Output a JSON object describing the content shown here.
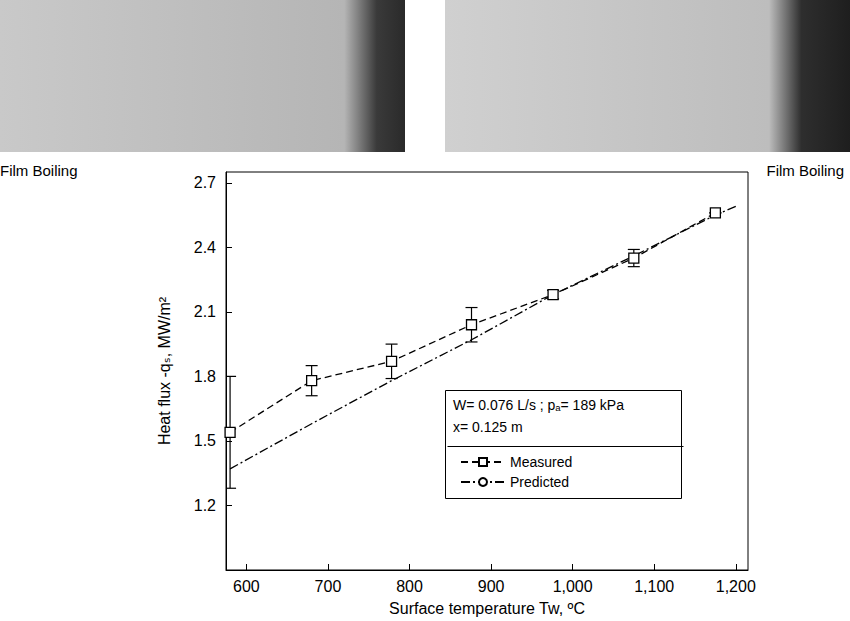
{
  "panels": [
    {
      "caption": "Film Boiling"
    },
    {
      "caption": "Film Boiling"
    }
  ],
  "chart_data": {
    "type": "line",
    "x_label": "Surface temperature Tw, ºC",
    "y_label": "Heat flux -qₛ, MW/m²",
    "annotations": [
      "W= 0.076 L/s ; pₐ= 189 kPa",
      "x= 0.125 m"
    ],
    "xlim": [
      575,
      1215
    ],
    "xticks": [
      600,
      700,
      800,
      900,
      1000,
      1100,
      1200
    ],
    "ylim": [
      0.9,
      2.75
    ],
    "yticks": [
      1.2,
      1.5,
      1.8,
      2.1,
      2.4,
      2.7
    ],
    "grid": false,
    "legend": "lower right",
    "series": [
      {
        "name": "Measured",
        "color": "#000000",
        "marker": "square",
        "line_style": "dashed",
        "x": [
          580,
          680,
          778,
          876,
          976,
          1075,
          1175
        ],
        "values": [
          1.54,
          1.78,
          1.87,
          2.04,
          2.18,
          2.35,
          2.56
        ],
        "errors": [
          0.26,
          0.07,
          0.08,
          0.08,
          0.02,
          0.04,
          0
        ]
      },
      {
        "name": "Predicted",
        "color": "#000000",
        "marker": "none",
        "line_style": "dashdot",
        "x": [
          580,
          680,
          778,
          876,
          976,
          1075,
          1175,
          1200
        ],
        "values": [
          1.37,
          1.58,
          1.78,
          1.97,
          2.18,
          2.36,
          2.55,
          2.59
        ]
      }
    ]
  }
}
